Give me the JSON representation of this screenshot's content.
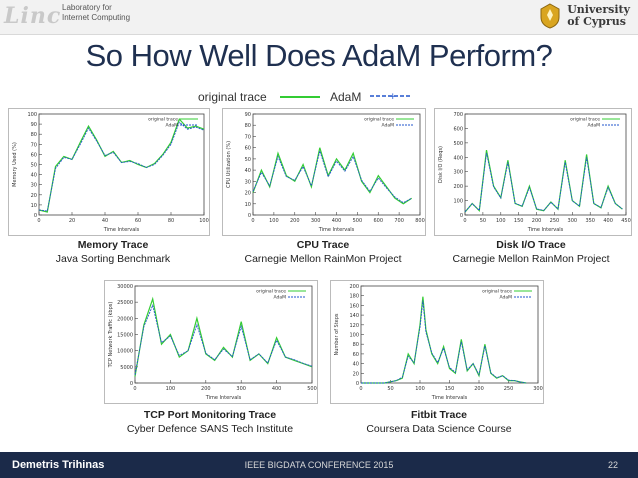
{
  "header": {
    "lab_logo": "Linc",
    "lab_line1": "Laboratory for",
    "lab_line2": "Internet Computing",
    "uni_line1": "University",
    "uni_line2": "of Cyprus"
  },
  "slide": {
    "title": "So How Well Does AdaM Perform?"
  },
  "legend": {
    "original_label": "original trace",
    "adam_label": "AdaM",
    "original_color": "#33cc33",
    "adam_color": "#2255cc"
  },
  "plots": [
    {
      "title": "Memory Trace",
      "subtitle": "Java Sorting Benchmark"
    },
    {
      "title": "CPU Trace",
      "subtitle": "Carnegie Mellon RainMon Project"
    },
    {
      "title": "Disk I/O Trace",
      "subtitle": "Carnegie Mellon RainMon Project"
    },
    {
      "title": "TCP Port Monitoring Trace",
      "subtitle": "Cyber Defence SANS Tech Institute"
    },
    {
      "title": "Fitbit Trace",
      "subtitle": "Coursera Data Science Course"
    }
  ],
  "chart_data": [
    {
      "type": "line",
      "ylabel": "Memory Used (%)",
      "xlabel": "Time Intervals",
      "xlim": [
        0,
        100
      ],
      "ylim": [
        0,
        100
      ],
      "xticks": [
        0,
        20,
        40,
        60,
        80,
        100
      ],
      "yticks": [
        0,
        10,
        20,
        30,
        40,
        50,
        60,
        70,
        80,
        90,
        100
      ],
      "legend": [
        "original trace",
        "AdaM"
      ],
      "x": [
        0,
        5,
        10,
        15,
        20,
        25,
        30,
        35,
        40,
        45,
        50,
        55,
        60,
        65,
        70,
        75,
        80,
        85,
        90,
        95,
        100
      ],
      "series": [
        {
          "name": "original trace",
          "values": [
            5,
            3,
            48,
            58,
            55,
            72,
            88,
            74,
            58,
            63,
            52,
            54,
            50,
            47,
            51,
            60,
            72,
            95,
            86,
            88,
            85
          ]
        },
        {
          "name": "AdaM",
          "values": [
            5,
            4,
            46,
            57,
            55,
            70,
            86,
            73,
            59,
            62,
            52,
            53,
            51,
            47,
            50,
            59,
            70,
            92,
            85,
            87,
            84
          ]
        }
      ]
    },
    {
      "type": "line",
      "ylabel": "CPU Utilization (%)",
      "xlabel": "Time Intervals",
      "xlim": [
        0,
        800
      ],
      "ylim": [
        0,
        90
      ],
      "xticks": [
        0,
        100,
        200,
        300,
        400,
        500,
        600,
        700,
        800
      ],
      "yticks": [
        0,
        10,
        20,
        30,
        40,
        50,
        60,
        70,
        80,
        90
      ],
      "legend": [
        "original trace",
        "AdaM"
      ],
      "x": [
        0,
        40,
        80,
        120,
        160,
        200,
        240,
        280,
        320,
        360,
        400,
        440,
        480,
        520,
        560,
        600,
        640,
        680,
        720,
        760
      ],
      "series": [
        {
          "name": "original trace",
          "values": [
            20,
            40,
            25,
            55,
            35,
            30,
            45,
            25,
            60,
            35,
            50,
            40,
            55,
            30,
            20,
            35,
            25,
            15,
            10,
            15
          ]
        },
        {
          "name": "AdaM",
          "values": [
            21,
            38,
            26,
            52,
            34,
            31,
            43,
            26,
            57,
            34,
            48,
            39,
            52,
            31,
            21,
            33,
            24,
            16,
            11,
            15
          ]
        }
      ]
    },
    {
      "type": "line",
      "ylabel": "Disk I/O (Reqs)",
      "xlabel": "Time Intervals",
      "xlim": [
        0,
        450
      ],
      "ylim": [
        0,
        700
      ],
      "xticks": [
        0,
        50,
        100,
        150,
        200,
        250,
        300,
        350,
        400,
        450
      ],
      "yticks": [
        0,
        100,
        200,
        300,
        400,
        500,
        600,
        700
      ],
      "legend": [
        "original trace",
        "AdaM"
      ],
      "x": [
        0,
        20,
        40,
        60,
        80,
        100,
        120,
        140,
        160,
        180,
        200,
        220,
        240,
        260,
        280,
        300,
        320,
        340,
        360,
        380,
        400,
        420,
        440
      ],
      "series": [
        {
          "name": "original trace",
          "values": [
            20,
            80,
            30,
            450,
            200,
            120,
            380,
            80,
            60,
            200,
            40,
            30,
            90,
            40,
            380,
            100,
            60,
            420,
            80,
            50,
            200,
            80,
            40
          ]
        },
        {
          "name": "AdaM",
          "values": [
            22,
            78,
            32,
            430,
            195,
            118,
            365,
            82,
            62,
            190,
            42,
            32,
            88,
            42,
            365,
            98,
            62,
            400,
            80,
            52,
            190,
            80,
            42
          ]
        }
      ]
    },
    {
      "type": "line",
      "ylabel": "TCP Network Traffic (kbps)",
      "xlabel": "Time Intervals",
      "xlim": [
        0,
        500
      ],
      "ylim": [
        0,
        30000
      ],
      "xticks": [
        0,
        100,
        200,
        300,
        400,
        500
      ],
      "yticks": [
        0,
        5000,
        10000,
        15000,
        20000,
        25000,
        30000
      ],
      "legend": [
        "original trace",
        "AdaM"
      ],
      "x": [
        0,
        25,
        50,
        75,
        100,
        125,
        150,
        175,
        200,
        225,
        250,
        275,
        300,
        325,
        350,
        375,
        400,
        425,
        450,
        475,
        500
      ],
      "series": [
        {
          "name": "original trace",
          "values": [
            2000,
            18000,
            26000,
            12000,
            15000,
            8000,
            10000,
            20000,
            9000,
            7000,
            11000,
            8000,
            19000,
            7000,
            9000,
            6000,
            14000,
            8000,
            7000,
            6000,
            5000
          ]
        },
        {
          "name": "AdaM",
          "values": [
            2500,
            17500,
            24000,
            12500,
            14500,
            8500,
            10000,
            18000,
            9200,
            7200,
            10500,
            8200,
            17500,
            7200,
            9000,
            6200,
            13200,
            8000,
            7200,
            6100,
            5200
          ]
        }
      ]
    },
    {
      "type": "line",
      "ylabel": "Number of Steps",
      "xlabel": "Time Intervals",
      "xlim": [
        0,
        300
      ],
      "ylim": [
        0,
        200
      ],
      "xticks": [
        0,
        50,
        100,
        150,
        200,
        250,
        300
      ],
      "yticks": [
        0,
        20,
        40,
        60,
        80,
        100,
        120,
        140,
        160,
        180,
        200
      ],
      "legend": [
        "original trace",
        "AdaM"
      ],
      "x": [
        0,
        20,
        40,
        60,
        70,
        80,
        90,
        100,
        105,
        110,
        120,
        130,
        140,
        150,
        160,
        170,
        180,
        190,
        200,
        210,
        220,
        230,
        240,
        250,
        260,
        270,
        280
      ],
      "series": [
        {
          "name": "original trace",
          "values": [
            0,
            0,
            0,
            5,
            10,
            60,
            40,
            120,
            178,
            110,
            60,
            40,
            75,
            30,
            20,
            90,
            25,
            40,
            15,
            80,
            20,
            10,
            15,
            5,
            5,
            2,
            0
          ]
        },
        {
          "name": "AdaM",
          "values": [
            0,
            0,
            0,
            5,
            12,
            55,
            42,
            115,
            170,
            105,
            62,
            42,
            72,
            32,
            22,
            85,
            27,
            40,
            17,
            76,
            21,
            11,
            15,
            6,
            5,
            2,
            0
          ]
        }
      ]
    }
  ],
  "footer": {
    "author": "Demetris Trihinas",
    "conference": "IEEE BIGDATA CONFERENCE 2015",
    "page": "22"
  }
}
